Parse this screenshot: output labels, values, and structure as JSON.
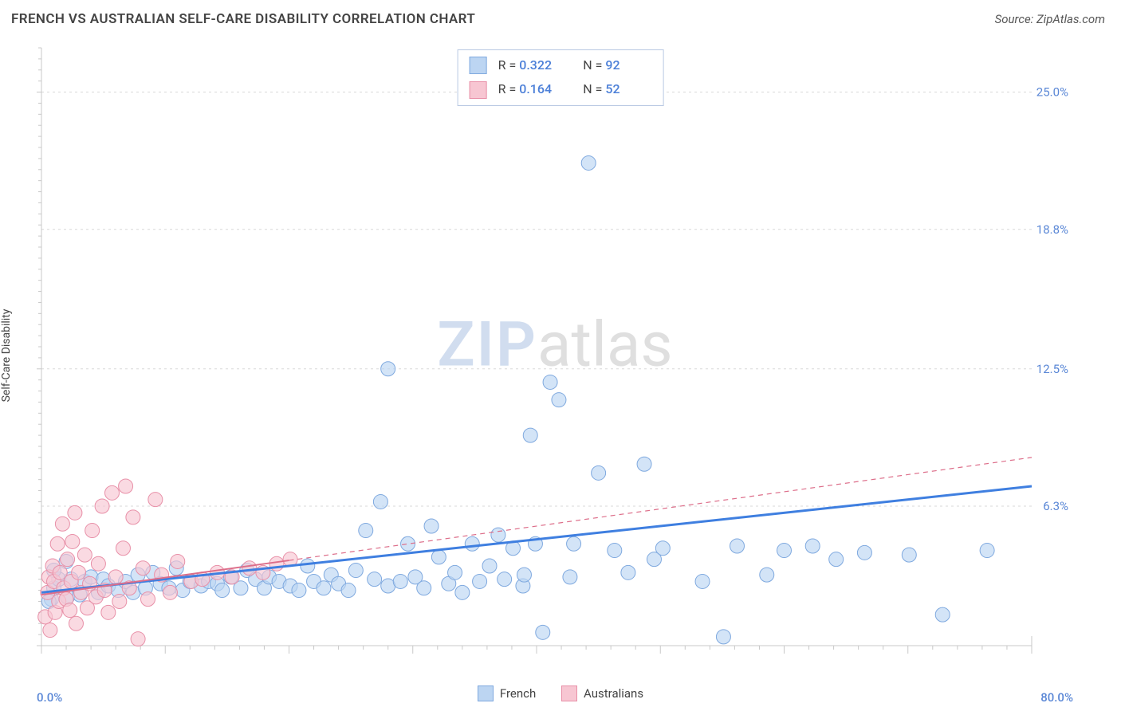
{
  "title": "FRENCH VS AUSTRALIAN SELF-CARE DISABILITY CORRELATION CHART",
  "source": "Source: ZipAtlas.com",
  "ylabel": "Self-Care Disability",
  "watermark_zip": "ZIP",
  "watermark_atlas": "atlas",
  "chart": {
    "type": "scatter",
    "xlim": [
      0,
      80
    ],
    "ylim": [
      0,
      27
    ],
    "x_start_label": "0.0%",
    "x_end_label": "80.0%",
    "y_grid": [
      6.3,
      12.5,
      18.8,
      25.0
    ],
    "y_grid_labels": [
      "6.3%",
      "12.5%",
      "18.8%",
      "25.0%"
    ],
    "x_minor_step": 2,
    "y_minor_step": 0.5,
    "grid_color": "#d8d8d8",
    "axis_color": "#c8c8c8",
    "y_label_color": "#5a87d6",
    "background_color": "#ffffff",
    "series": [
      {
        "name": "French",
        "marker_fill": "#bcd5f2",
        "marker_stroke": "#7fa9df",
        "marker_r": 9,
        "line_color": "#3f7fe0",
        "line_width": 3,
        "line_dash": "",
        "trend_y_at_x0": 2.4,
        "trend_y_at_x80": 7.2,
        "extrapolate_dash": false,
        "stats": {
          "R": "0.322",
          "N": "92"
        },
        "points": [
          [
            0.8,
            2.1
          ],
          [
            1.0,
            2.6
          ],
          [
            1.4,
            3.0
          ],
          [
            1.0,
            3.4
          ],
          [
            0.6,
            2.0
          ],
          [
            2.1,
            2.2
          ],
          [
            2.0,
            3.8
          ],
          [
            2.4,
            3.0
          ],
          [
            3.1,
            2.3
          ],
          [
            3.5,
            2.9
          ],
          [
            4.0,
            3.1
          ],
          [
            4.6,
            2.4
          ],
          [
            5.0,
            3.0
          ],
          [
            5.4,
            2.7
          ],
          [
            6.2,
            2.5
          ],
          [
            6.8,
            2.9
          ],
          [
            7.4,
            2.4
          ],
          [
            7.8,
            3.2
          ],
          [
            8.4,
            2.6
          ],
          [
            9.0,
            3.3
          ],
          [
            9.6,
            2.8
          ],
          [
            10.3,
            2.6
          ],
          [
            10.9,
            3.5
          ],
          [
            11.4,
            2.5
          ],
          [
            12.0,
            2.9
          ],
          [
            12.9,
            2.7
          ],
          [
            13.5,
            2.9
          ],
          [
            14.2,
            2.8
          ],
          [
            14.6,
            2.5
          ],
          [
            15.3,
            3.1
          ],
          [
            16.1,
            2.6
          ],
          [
            16.6,
            3.4
          ],
          [
            17.3,
            3.0
          ],
          [
            18.0,
            2.6
          ],
          [
            18.4,
            3.1
          ],
          [
            19.2,
            2.9
          ],
          [
            20.1,
            2.7
          ],
          [
            20.8,
            2.5
          ],
          [
            21.5,
            3.6
          ],
          [
            22.0,
            2.9
          ],
          [
            22.8,
            2.6
          ],
          [
            23.4,
            3.2
          ],
          [
            24.0,
            2.8
          ],
          [
            24.8,
            2.5
          ],
          [
            25.4,
            3.4
          ],
          [
            26.2,
            5.2
          ],
          [
            26.9,
            3.0
          ],
          [
            27.4,
            6.5
          ],
          [
            28.0,
            2.7
          ],
          [
            28.0,
            12.5
          ],
          [
            29.0,
            2.9
          ],
          [
            29.6,
            4.6
          ],
          [
            30.2,
            3.1
          ],
          [
            30.9,
            2.6
          ],
          [
            31.5,
            5.4
          ],
          [
            32.1,
            4.0
          ],
          [
            32.9,
            2.8
          ],
          [
            33.4,
            3.3
          ],
          [
            34.0,
            2.4
          ],
          [
            34.8,
            4.6
          ],
          [
            35.4,
            2.9
          ],
          [
            36.2,
            3.6
          ],
          [
            36.9,
            5.0
          ],
          [
            37.4,
            3.0
          ],
          [
            38.1,
            4.4
          ],
          [
            38.9,
            2.7
          ],
          [
            39.5,
            9.5
          ],
          [
            39.9,
            4.6
          ],
          [
            40.5,
            0.6
          ],
          [
            41.1,
            11.9
          ],
          [
            41.8,
            11.1
          ],
          [
            42.7,
            3.1
          ],
          [
            39.0,
            3.2
          ],
          [
            43.0,
            4.6
          ],
          [
            44.2,
            21.8
          ],
          [
            45.0,
            7.8
          ],
          [
            46.3,
            4.3
          ],
          [
            47.4,
            3.3
          ],
          [
            48.7,
            8.2
          ],
          [
            49.5,
            3.9
          ],
          [
            50.2,
            4.4
          ],
          [
            53.4,
            2.9
          ],
          [
            55.1,
            0.4
          ],
          [
            56.2,
            4.5
          ],
          [
            58.6,
            3.2
          ],
          [
            60.0,
            4.3
          ],
          [
            62.3,
            4.5
          ],
          [
            64.2,
            3.9
          ],
          [
            66.5,
            4.2
          ],
          [
            70.1,
            4.1
          ],
          [
            72.8,
            1.4
          ],
          [
            76.4,
            4.3
          ]
        ]
      },
      {
        "name": "Australians",
        "marker_fill": "#f7c6d2",
        "marker_stroke": "#e890a8",
        "marker_r": 9,
        "line_color": "#dd6e8a",
        "line_width": 2,
        "line_dash": "6 5",
        "trend_y_at_x0": 2.3,
        "trend_y_at_x80": 8.5,
        "extrapolate_dash": true,
        "extrapolate_from_x": 20,
        "stats": {
          "R": "0.164",
          "N": "52"
        },
        "points": [
          [
            0.3,
            1.3
          ],
          [
            0.5,
            2.4
          ],
          [
            0.6,
            3.1
          ],
          [
            0.7,
            0.7
          ],
          [
            0.9,
            3.6
          ],
          [
            1.0,
            2.9
          ],
          [
            1.1,
            1.5
          ],
          [
            1.3,
            4.6
          ],
          [
            1.4,
            2.0
          ],
          [
            1.5,
            3.3
          ],
          [
            1.7,
            5.5
          ],
          [
            1.8,
            2.6
          ],
          [
            2.0,
            2.1
          ],
          [
            2.1,
            3.9
          ],
          [
            2.3,
            1.6
          ],
          [
            2.4,
            2.9
          ],
          [
            2.5,
            4.7
          ],
          [
            2.7,
            6.0
          ],
          [
            2.8,
            1.0
          ],
          [
            3.0,
            3.3
          ],
          [
            3.2,
            2.4
          ],
          [
            3.5,
            4.1
          ],
          [
            3.7,
            1.7
          ],
          [
            3.9,
            2.8
          ],
          [
            4.1,
            5.2
          ],
          [
            4.4,
            2.2
          ],
          [
            4.6,
            3.7
          ],
          [
            4.9,
            6.3
          ],
          [
            5.1,
            2.5
          ],
          [
            5.4,
            1.5
          ],
          [
            5.7,
            6.9
          ],
          [
            6.0,
            3.1
          ],
          [
            6.3,
            2.0
          ],
          [
            6.6,
            4.4
          ],
          [
            6.8,
            7.2
          ],
          [
            7.1,
            2.6
          ],
          [
            7.4,
            5.8
          ],
          [
            7.8,
            0.3
          ],
          [
            8.2,
            3.5
          ],
          [
            8.6,
            2.1
          ],
          [
            9.2,
            6.6
          ],
          [
            9.7,
            3.2
          ],
          [
            10.4,
            2.4
          ],
          [
            11.0,
            3.8
          ],
          [
            12.1,
            2.9
          ],
          [
            13.0,
            3.0
          ],
          [
            14.2,
            3.3
          ],
          [
            15.4,
            3.1
          ],
          [
            16.8,
            3.5
          ],
          [
            17.9,
            3.3
          ],
          [
            19.0,
            3.7
          ],
          [
            20.1,
            3.9
          ]
        ]
      }
    ],
    "bottom_legend": [
      {
        "label": "French",
        "fill": "#bcd5f2",
        "stroke": "#7fa9df"
      },
      {
        "label": "Australians",
        "fill": "#f7c6d2",
        "stroke": "#e890a8"
      }
    ]
  }
}
